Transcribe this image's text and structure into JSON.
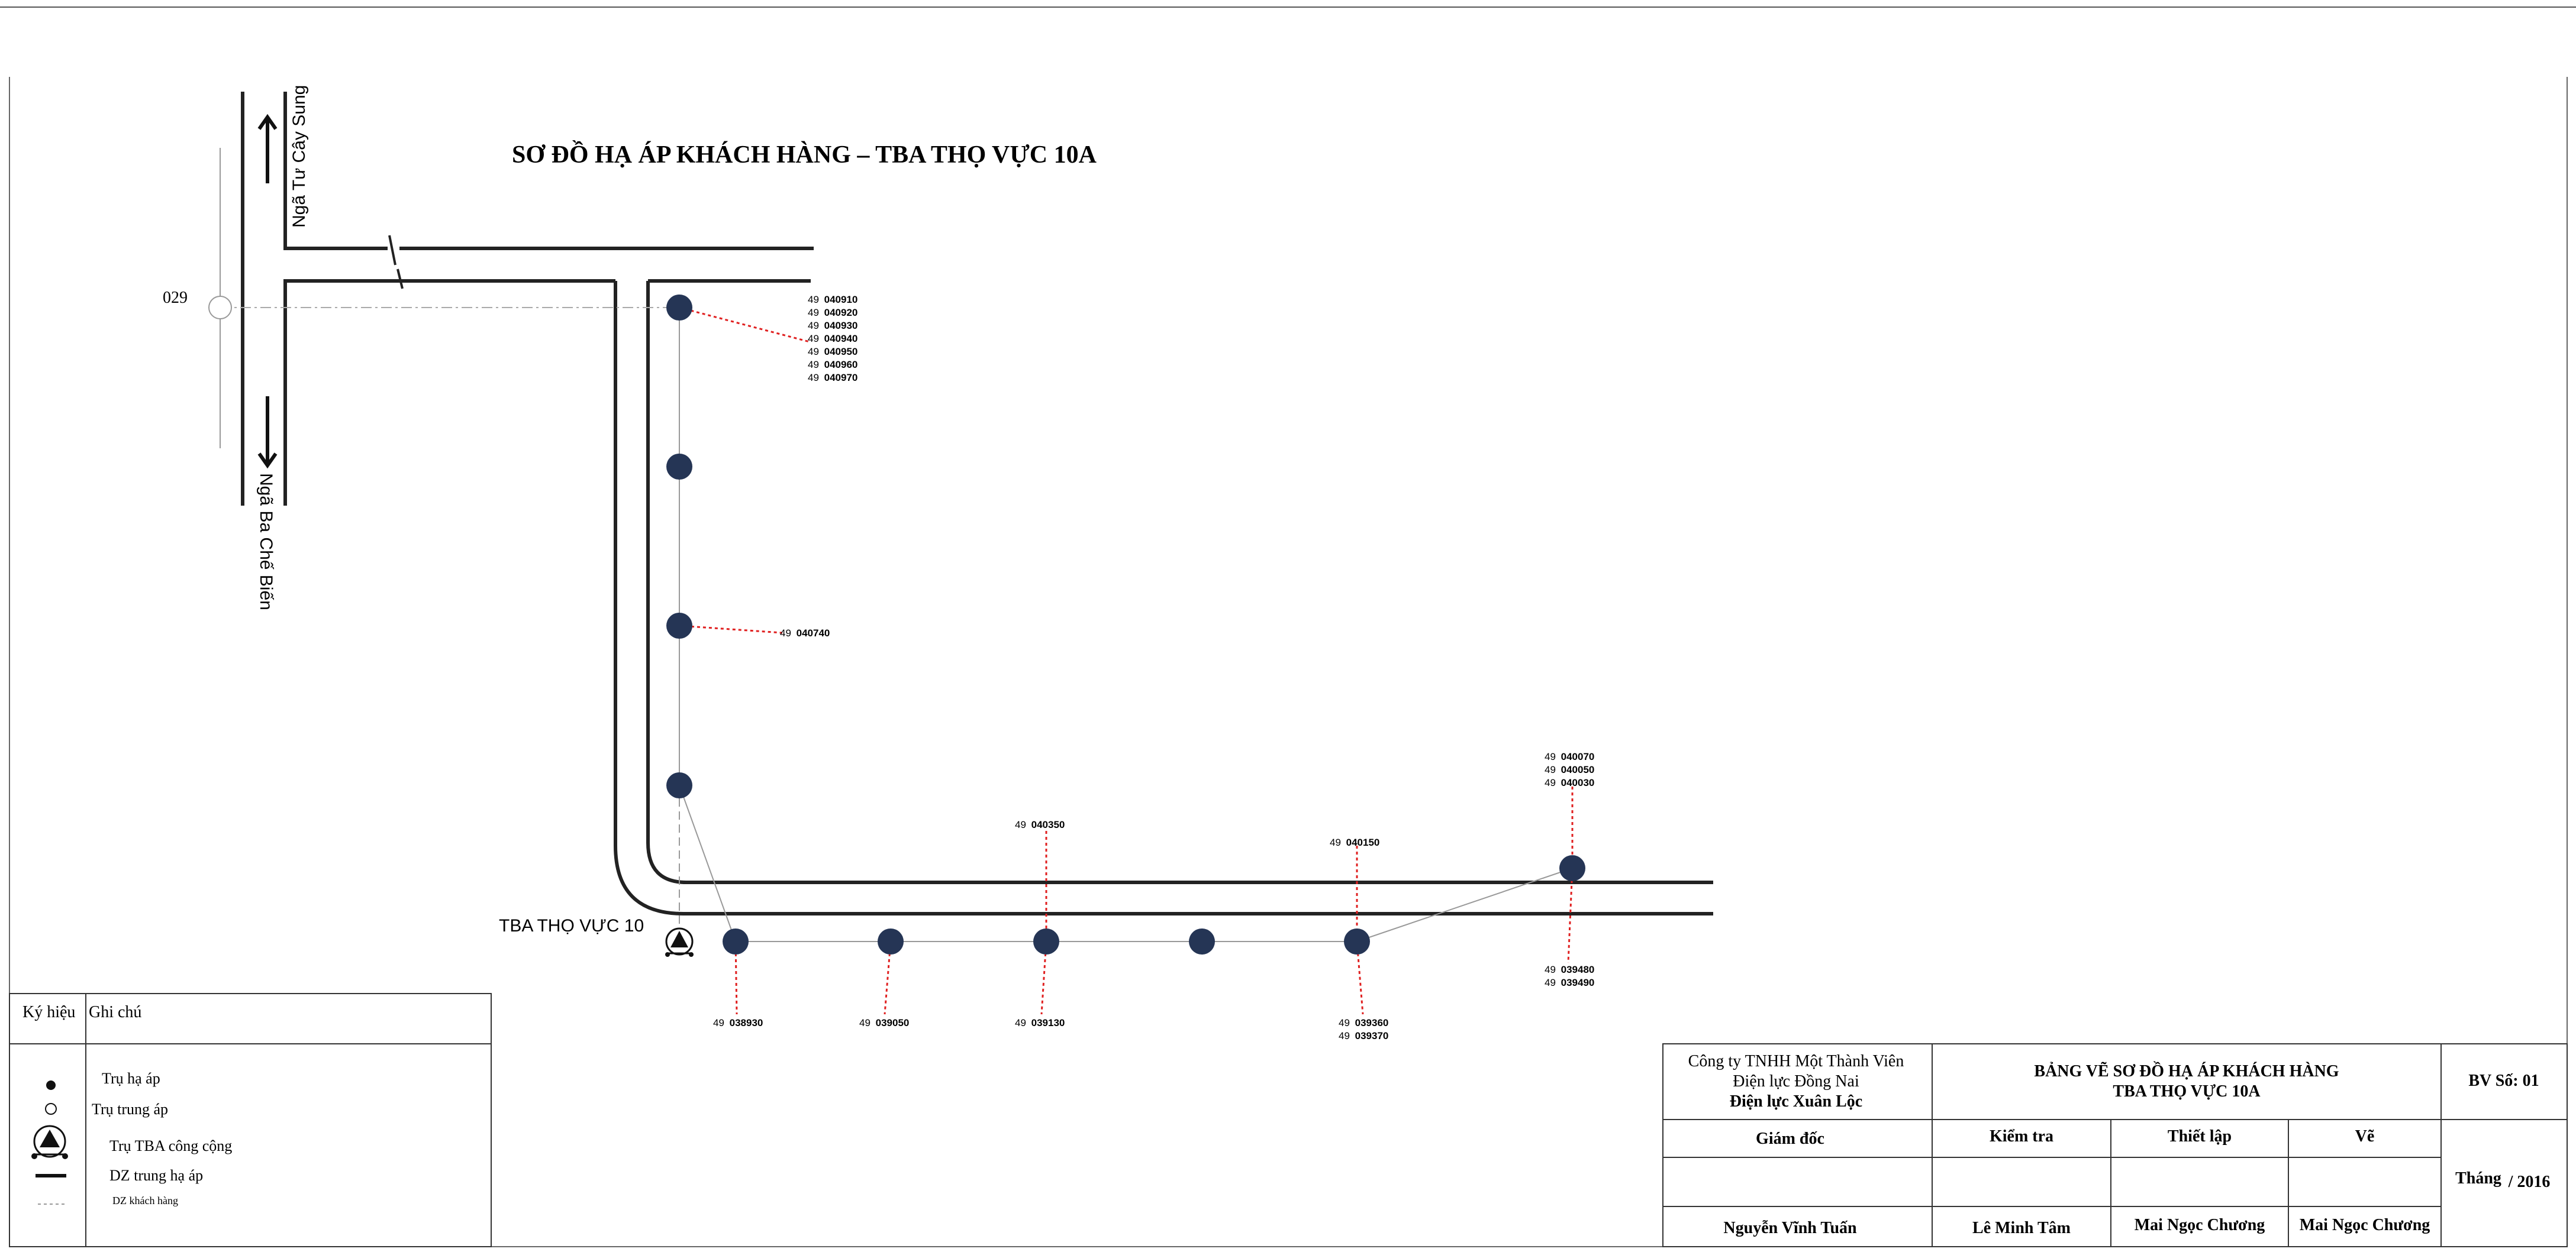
{
  "title": "SƠ ĐỒ HẠ ÁP KHÁCH HÀNG – TBA THỌ VỰC 10A",
  "roads": {
    "north": "Ngã Tư Cây Sung",
    "south": "Ngã Ba Chế Biến"
  },
  "mv_pole_label": "029",
  "substation_label": "TBA THỌ VỰC 10",
  "customer_groups": {
    "g1": [
      {
        "prefix": "49",
        "code": "040910"
      },
      {
        "prefix": "49",
        "code": "040920"
      },
      {
        "prefix": "49",
        "code": "040930"
      },
      {
        "prefix": "49",
        "code": "040940"
      },
      {
        "prefix": "49",
        "code": "040950"
      },
      {
        "prefix": "49",
        "code": "040960"
      },
      {
        "prefix": "49",
        "code": "040970"
      }
    ],
    "g2": [
      {
        "prefix": "49",
        "code": "040740"
      }
    ],
    "g3": [
      {
        "prefix": "49",
        "code": "040350"
      }
    ],
    "g4": [
      {
        "prefix": "49",
        "code": "040150"
      }
    ],
    "g5": [
      {
        "prefix": "49",
        "code": "040070"
      },
      {
        "prefix": "49",
        "code": "040050"
      },
      {
        "prefix": "49",
        "code": "040030"
      }
    ],
    "g6": [
      {
        "prefix": "49",
        "code": "038930"
      }
    ],
    "g7": [
      {
        "prefix": "49",
        "code": "039050"
      }
    ],
    "g8": [
      {
        "prefix": "49",
        "code": "039130"
      }
    ],
    "g9": [
      {
        "prefix": "49",
        "code": "039360"
      },
      {
        "prefix": "49",
        "code": "039370"
      }
    ],
    "g10": [
      {
        "prefix": "49",
        "code": "039480"
      },
      {
        "prefix": "49",
        "code": "039490"
      }
    ]
  },
  "legend": {
    "header_symbol": "Ký hiệu",
    "header_note": "Ghi chú",
    "items": [
      {
        "icon": "lv-pole-dot",
        "label": "Trụ hạ áp"
      },
      {
        "icon": "mv-pole-circle",
        "label": "Trụ trung áp"
      },
      {
        "icon": "substation-triangle",
        "label": "Trụ TBA công cộng"
      },
      {
        "icon": "solid-line",
        "label": "DZ trung hạ áp"
      },
      {
        "icon": "dashed-line",
        "label": "DZ khách hàng"
      }
    ]
  },
  "title_block": {
    "company_line1": "Công ty TNHH Một Thành Viên",
    "company_line2": "Điện lực Đồng Nai",
    "company_line3": "Điện lực Xuân Lộc",
    "drawing_title_line1": "BẢNG VẼ SƠ ĐỒ HẠ ÁP KHÁCH HÀNG",
    "drawing_title_line2": "TBA THỌ VỰC 10A",
    "drawing_no": "BV Số: 01",
    "role_director": "Giám đốc",
    "role_check": "Kiểm tra",
    "role_setup": "Thiết lập",
    "role_draw": "Vẽ",
    "name_director": "Nguyễn Vĩnh Tuấn",
    "name_check": "Lê Minh Tâm",
    "name_setup": "Mai Ngọc Chương",
    "name_draw": "Mai Ngọc Chương",
    "month_label": "Tháng",
    "year": "/ 2016"
  },
  "colors": {
    "pole_fill": "#253555",
    "customer_line": "#e02020",
    "road_line": "#333333",
    "feeder_line": "#999999"
  }
}
